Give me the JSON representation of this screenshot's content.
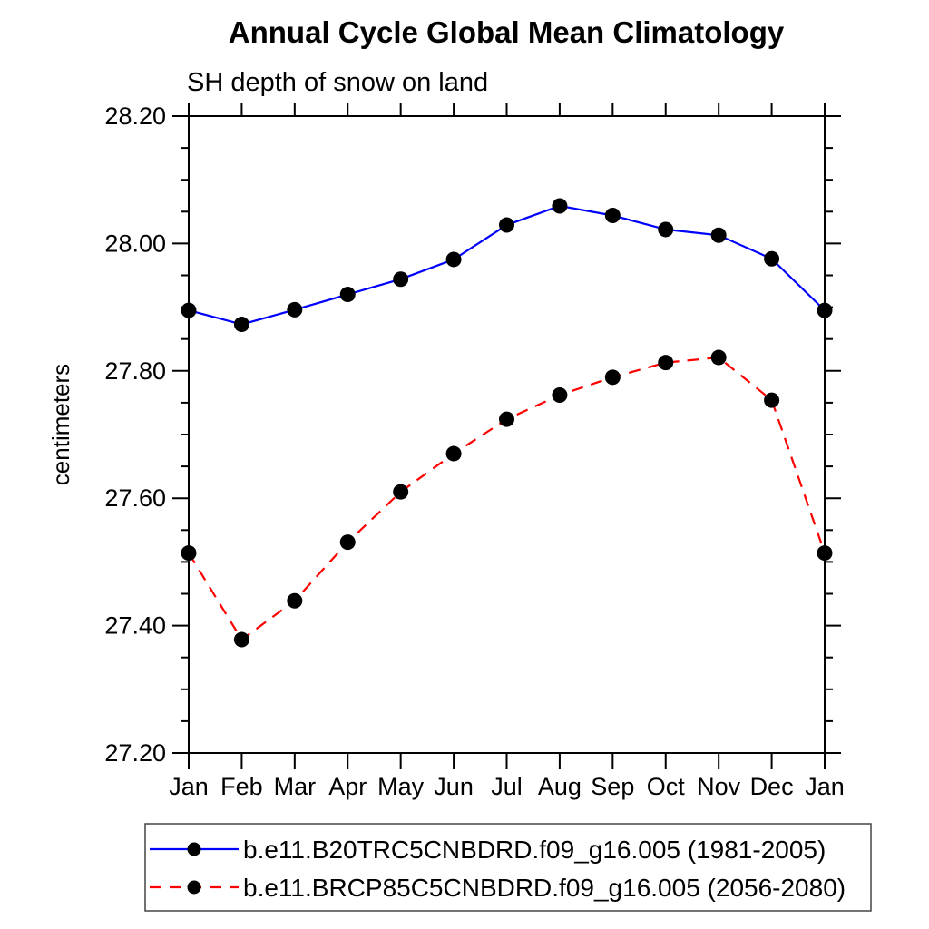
{
  "page": {
    "background_color": "#ffffff",
    "text_color": "#000000"
  },
  "chart_data": {
    "type": "line",
    "title": "Annual Cycle Global Mean Climatology",
    "subtitle": "SH depth of snow on land",
    "xlabel": "",
    "ylabel": "centimeters",
    "categories": [
      "Jan",
      "Feb",
      "Mar",
      "Apr",
      "May",
      "Jun",
      "Jul",
      "Aug",
      "Sep",
      "Oct",
      "Nov",
      "Dec",
      "Jan"
    ],
    "ylim": [
      27.2,
      28.2
    ],
    "ytick_major_step": 0.2,
    "ytick_minor_step": 0.05,
    "ytick_label_format_decimals": 2,
    "grid": false,
    "legend_position": "bottom",
    "series": [
      {
        "name": "b.e11.B20TRC5CNBDRD.f09_g16.005 (1981-2005)",
        "color": "#0000ff",
        "line_style": "solid",
        "marker": "filled-circle",
        "marker_color": "#000000",
        "values": [
          27.895,
          27.873,
          27.896,
          27.92,
          27.944,
          27.975,
          28.029,
          28.059,
          28.044,
          28.022,
          28.013,
          27.976,
          27.895
        ]
      },
      {
        "name": "b.e11.BRCP85C5CNBDRD.f09_g16.005 (2056-2080)",
        "color": "#ff0000",
        "line_style": "dashed",
        "marker": "filled-circle",
        "marker_color": "#000000",
        "values": [
          27.514,
          27.378,
          27.439,
          27.531,
          27.61,
          27.67,
          27.724,
          27.762,
          27.79,
          27.813,
          27.821,
          27.754,
          27.514
        ]
      }
    ]
  }
}
